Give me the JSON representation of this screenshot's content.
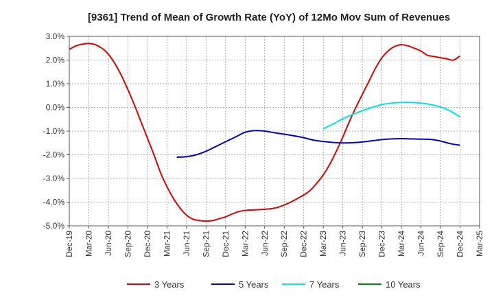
{
  "chart_data": {
    "type": "line",
    "title": "[9361]  Trend of Mean of Growth Rate (YoY) of 12Mo Mov Sum of Revenues",
    "xlabel": "",
    "ylabel": "",
    "ylim": [
      -5.0,
      3.0
    ],
    "yticks": [
      -5.0,
      -4.0,
      -3.0,
      -2.0,
      -1.0,
      0.0,
      1.0,
      2.0,
      3.0
    ],
    "ytick_labels": [
      "-5.0%",
      "-4.0%",
      "-3.0%",
      "-2.0%",
      "-1.0%",
      "0.0%",
      "1.0%",
      "2.0%",
      "3.0%"
    ],
    "x_categories": [
      "Dec-19",
      "Mar-20",
      "Jun-20",
      "Sep-20",
      "Dec-20",
      "Mar-21",
      "Jun-21",
      "Sep-21",
      "Dec-21",
      "Mar-22",
      "Jun-22",
      "Sep-22",
      "Dec-22",
      "Mar-23",
      "Jun-23",
      "Sep-23",
      "Dec-23",
      "Mar-24",
      "Jun-24",
      "Sep-24",
      "Dec-24",
      "Mar-25"
    ],
    "grid": true,
    "legend_position": "bottom",
    "series": [
      {
        "name": "3 Years",
        "color": "#dd0000",
        "x": [
          0,
          0.333,
          0.667,
          1,
          1.333,
          1.667,
          2,
          2.333,
          2.667,
          3,
          3.333,
          3.667,
          4,
          4.333,
          4.667,
          5,
          5.333,
          5.667,
          6,
          6.333,
          6.667,
          7,
          7.333,
          7.667,
          8,
          8.333,
          8.667,
          9,
          9.333,
          9.667,
          10,
          10.333,
          10.667,
          11,
          11.333,
          11.667,
          12,
          12.333,
          12.667,
          13,
          13.333,
          13.667,
          14,
          14.333,
          14.667,
          15,
          15.333,
          15.667,
          16,
          16.333,
          16.667,
          17,
          17.333,
          17.667,
          18,
          18.333,
          18.667,
          19,
          19.333,
          19.667,
          20
        ],
        "values": [
          2.45,
          2.6,
          2.67,
          2.7,
          2.65,
          2.5,
          2.25,
          1.85,
          1.35,
          0.75,
          0.1,
          -0.6,
          -1.3,
          -2.0,
          -2.75,
          -3.35,
          -3.85,
          -4.25,
          -4.55,
          -4.72,
          -4.78,
          -4.8,
          -4.78,
          -4.7,
          -4.62,
          -4.5,
          -4.4,
          -4.35,
          -4.33,
          -4.32,
          -4.3,
          -4.28,
          -4.22,
          -4.12,
          -4.0,
          -3.85,
          -3.7,
          -3.5,
          -3.2,
          -2.85,
          -2.4,
          -1.85,
          -1.25,
          -0.6,
          0.0,
          0.55,
          1.1,
          1.65,
          2.1,
          2.4,
          2.58,
          2.65,
          2.6,
          2.5,
          2.38,
          2.2,
          2.15,
          2.1,
          2.05,
          2.0,
          2.18
        ]
      },
      {
        "name": "5 Years",
        "color": "#0000cc",
        "x": [
          5.5,
          6,
          6.5,
          7,
          7.5,
          8,
          8.5,
          9,
          9.5,
          10,
          10.5,
          11,
          11.5,
          12,
          12.5,
          13,
          13.5,
          14,
          14.5,
          15,
          15.5,
          16,
          16.5,
          17,
          17.5,
          18,
          18.5,
          19,
          19.5,
          20
        ],
        "values": [
          -2.1,
          -2.08,
          -2.0,
          -1.85,
          -1.65,
          -1.45,
          -1.25,
          -1.05,
          -0.98,
          -1.0,
          -1.07,
          -1.13,
          -1.2,
          -1.28,
          -1.38,
          -1.44,
          -1.48,
          -1.5,
          -1.49,
          -1.46,
          -1.41,
          -1.36,
          -1.33,
          -1.32,
          -1.33,
          -1.34,
          -1.35,
          -1.42,
          -1.53,
          -1.6
        ]
      },
      {
        "name": "7 Years",
        "color": "#00e5e5",
        "x": [
          13,
          13.5,
          14,
          14.5,
          15,
          15.5,
          16,
          16.5,
          17,
          17.5,
          18,
          18.5,
          19,
          19.5,
          20
        ],
        "values": [
          -0.9,
          -0.7,
          -0.48,
          -0.3,
          -0.14,
          0.0,
          0.12,
          0.18,
          0.21,
          0.21,
          0.18,
          0.12,
          0.02,
          -0.15,
          -0.4
        ]
      },
      {
        "name": "10 Years",
        "color": "#008000",
        "x": [],
        "values": []
      }
    ]
  }
}
